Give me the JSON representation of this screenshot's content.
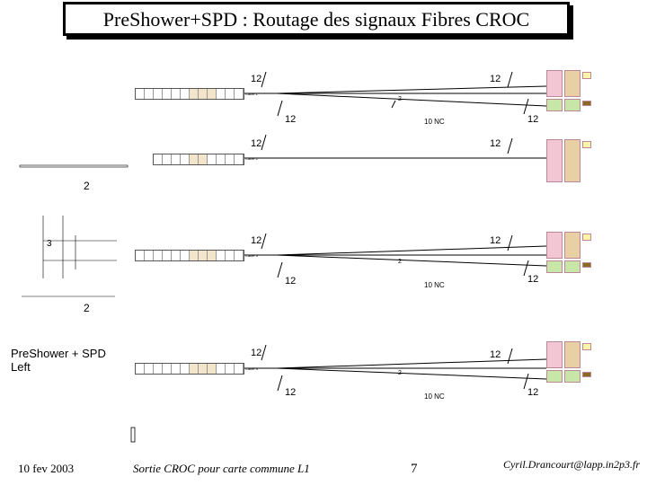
{
  "title": "PreShower+SPD : Routage des signaux Fibres CROC",
  "side_title_line1": "PreShower + SPD",
  "side_title_line2": "Left",
  "footer": {
    "date": "10 fev 2003",
    "caption": "Sortie CROC pour carte commune L1",
    "page": "7",
    "author": "Cyril.Drancourt@lapp.in2p3.fr"
  },
  "labels": {
    "twelve": "12",
    "two": "2",
    "ten_nc": "10 NC",
    "three": "3"
  },
  "blocks": [
    {
      "cable": "Câble 1"
    },
    {
      "cable": "Câble 2"
    },
    {
      "cable": "Câble 3"
    },
    {
      "cable": "Câble 4"
    }
  ],
  "colors": {
    "line": "#000000",
    "board_pink": "#f2c6d3",
    "board_yellow": "#fff5a8",
    "board_green": "#c8e6a8",
    "board_tan": "#e8cfa4",
    "board_dark": "#8a6a20",
    "strip_tan": "#f3e5c9"
  }
}
